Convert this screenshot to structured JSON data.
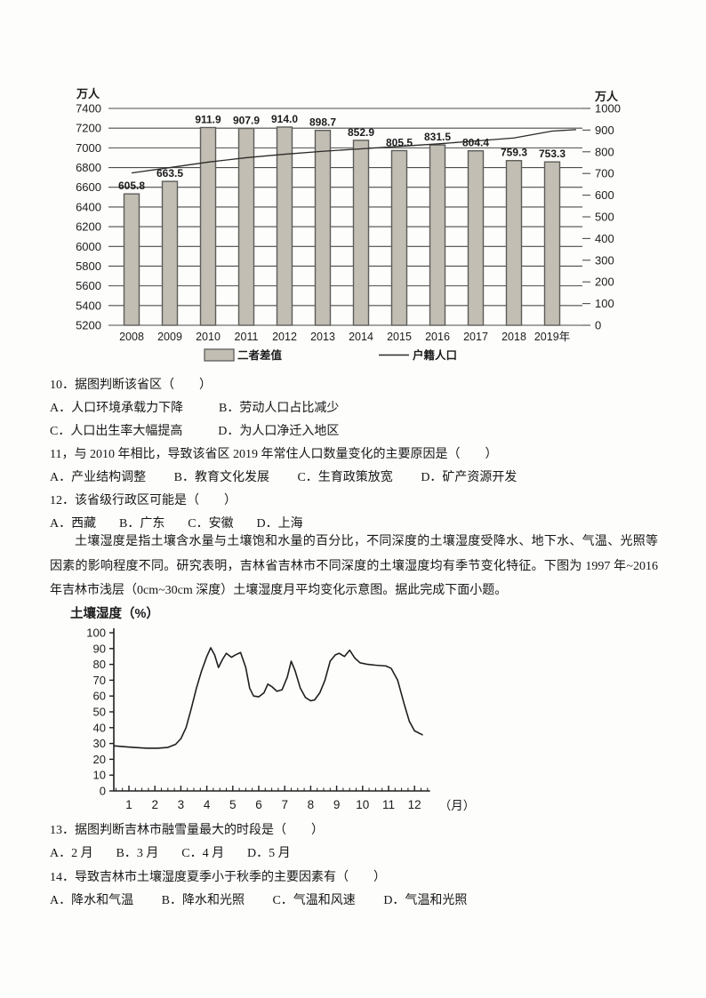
{
  "document": {
    "questions": {
      "q10": {
        "stem": "10．据图判断该省区（　　）",
        "options": [
          "A．人口环境承载力下降",
          "B．劳动人口占比减少",
          "C．人口出生率大幅提高",
          "D．为人口净迁入地区"
        ]
      },
      "q11": {
        "stem": "11，与 2010 年相比，导致该省区 2019 年常住人口数量变化的主要原因是（　　）",
        "options": [
          "A．产业结构调整",
          "B．教育文化发展",
          "C．生育政策放宽",
          "D．矿产资源开发"
        ]
      },
      "q12": {
        "stem": "12．该省级行政区可能是（　　）",
        "options": [
          "A．西藏",
          "B．广东",
          "C．安徽",
          "D．上海"
        ]
      },
      "q13": {
        "stem": "13．据图判断吉林市融雪量最大的时段是（　　）",
        "options": [
          "A．2 月",
          "B．3 月",
          "C．4 月",
          "D．5 月"
        ]
      },
      "q14": {
        "stem": "14．导致吉林市土壤湿度夏季小于秋季的主要因素有（　　）",
        "options": [
          "A．降水和气温",
          "B．降水和光照",
          "C．气温和风速",
          "D．气温和光照"
        ]
      }
    },
    "passage": "土壤湿度是指土壤含水量与土壤饱和水量的百分比，不同深度的土壤湿度受降水、地下水、气温、光照等因素的影响程度不同。研究表明，吉林省吉林市不同深度的土壤湿度均有季节变化特征。下图为 1997 年~2016 年吉林市浅层（0cm~30cm 深度）土壤湿度月平均变化示意图。据此完成下面小题。"
  },
  "chart_data": [
    {
      "type": "bar",
      "note": "bar+line combo; bars read on right axis, line on left axis",
      "unit_left": "万人",
      "unit_right": "万人",
      "categories": [
        "2008",
        "2009",
        "2010",
        "2011",
        "2012",
        "2013",
        "2014",
        "2015",
        "2016",
        "2017",
        "2018",
        "2019年"
      ],
      "bar_series": {
        "name": "二者差值",
        "axis": "right",
        "labels": [
          "605.8",
          "663.5",
          "911.9",
          "907.9",
          "914.0",
          "898.7",
          "852.9",
          "805.5",
          "831.5",
          "804.4",
          "759.3",
          "753.3"
        ]
      },
      "line_series": {
        "name": "户籍人口",
        "axis": "left",
        "values": [
          6745,
          6800,
          6855,
          6900,
          6935,
          6965,
          6990,
          7015,
          7040,
          7070,
          7100,
          7170
        ],
        "end_extension_value": 7185
      },
      "left_axis": {
        "min": 5200,
        "max": 7400,
        "step": 200
      },
      "right_axis": {
        "min": 0,
        "max": 1000,
        "step": 100
      },
      "bar_color": "#c3beb4",
      "bar_border": "#5c5c58",
      "grid": true,
      "legend_position": "bottom"
    },
    {
      "type": "line",
      "title": "土壤湿度（%）",
      "xlabel": "（月）",
      "x_ticks": [
        1,
        2,
        3,
        4,
        5,
        6,
        7,
        8,
        9,
        10,
        11,
        12
      ],
      "ylim": [
        0,
        100
      ],
      "y_step": 10,
      "grid": false,
      "points": [
        [
          0.45,
          28.5
        ],
        [
          0.8,
          28
        ],
        [
          1.2,
          27.5
        ],
        [
          1.7,
          27
        ],
        [
          2.1,
          27
        ],
        [
          2.5,
          27.5
        ],
        [
          2.8,
          29.5
        ],
        [
          3.0,
          33
        ],
        [
          3.2,
          40
        ],
        [
          3.4,
          52
        ],
        [
          3.6,
          65
        ],
        [
          3.8,
          76
        ],
        [
          4.0,
          85
        ],
        [
          4.15,
          90.5
        ],
        [
          4.3,
          86
        ],
        [
          4.45,
          78
        ],
        [
          4.6,
          83
        ],
        [
          4.75,
          87
        ],
        [
          4.95,
          84.5
        ],
        [
          5.1,
          86
        ],
        [
          5.3,
          87.5
        ],
        [
          5.5,
          78
        ],
        [
          5.65,
          65
        ],
        [
          5.8,
          60
        ],
        [
          6.0,
          59.5
        ],
        [
          6.2,
          62
        ],
        [
          6.35,
          67.5
        ],
        [
          6.5,
          66
        ],
        [
          6.7,
          63
        ],
        [
          6.9,
          64
        ],
        [
          7.1,
          72
        ],
        [
          7.25,
          82
        ],
        [
          7.4,
          76
        ],
        [
          7.6,
          65
        ],
        [
          7.8,
          59
        ],
        [
          8.0,
          57
        ],
        [
          8.15,
          57.5
        ],
        [
          8.35,
          62
        ],
        [
          8.55,
          70
        ],
        [
          8.75,
          82
        ],
        [
          8.95,
          86
        ],
        [
          9.1,
          87
        ],
        [
          9.3,
          85
        ],
        [
          9.5,
          89
        ],
        [
          9.7,
          84
        ],
        [
          9.9,
          81
        ],
        [
          10.2,
          80
        ],
        [
          10.5,
          79.5
        ],
        [
          10.9,
          79
        ],
        [
          11.1,
          77.5
        ],
        [
          11.35,
          70
        ],
        [
          11.6,
          55
        ],
        [
          11.8,
          44
        ],
        [
          12.0,
          38
        ],
        [
          12.3,
          35.5
        ]
      ]
    }
  ]
}
